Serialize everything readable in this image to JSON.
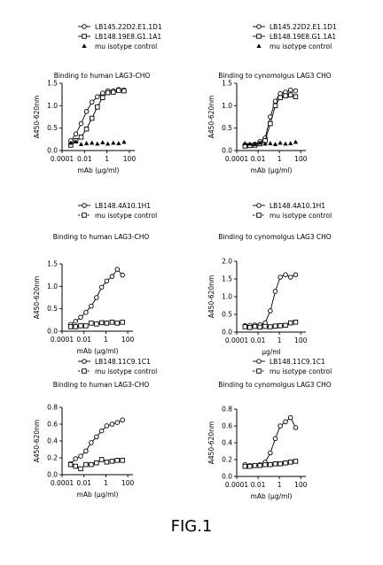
{
  "figure": {
    "caption": "FIG.1"
  },
  "chart_data": [
    {
      "type": "scatter",
      "title": "Binding to human LAG3-CHO",
      "xlabel": "mAb (μg/ml)",
      "ylabel": "A450-620nm",
      "xscale": "log",
      "xticks": [
        "0.0001",
        "0.01",
        "1",
        "100"
      ],
      "xtick_values": [
        0.0001,
        0.01,
        1,
        100
      ],
      "xlim": [
        0.0001,
        300
      ],
      "yticks": [
        "0.0",
        "0.5",
        "1.0",
        "1.5"
      ],
      "ytick_values": [
        0,
        0.5,
        1.0,
        1.5
      ],
      "ylim": [
        0,
        1.5
      ],
      "legend_position": "top",
      "series": [
        {
          "name": "LB145.22D2.E1.1D1",
          "marker": "circle",
          "curve": true,
          "x": [
            0.0006,
            0.0017,
            0.005,
            0.015,
            0.046,
            0.14,
            0.41,
            1.2,
            3.7,
            11,
            33
          ],
          "y": [
            0.22,
            0.37,
            0.6,
            0.87,
            1.08,
            1.2,
            1.28,
            1.33,
            1.33,
            1.36,
            1.35
          ]
        },
        {
          "name": "LB148.19E8.G1.1A1",
          "marker": "square",
          "curve": true,
          "x": [
            0.0006,
            0.0017,
            0.005,
            0.015,
            0.046,
            0.14,
            0.41,
            1.2,
            3.7,
            11,
            33
          ],
          "y": [
            0.12,
            0.22,
            0.3,
            0.48,
            0.72,
            0.97,
            1.18,
            1.29,
            1.3,
            1.34,
            1.33
          ]
        },
        {
          "name": "mu isotype control",
          "marker": "triangle",
          "curve": false,
          "x": [
            0.0006,
            0.0017,
            0.005,
            0.015,
            0.046,
            0.14,
            0.41,
            1.2,
            3.7,
            11,
            33
          ],
          "y": [
            0.17,
            0.2,
            0.14,
            0.16,
            0.17,
            0.15,
            0.18,
            0.15,
            0.17,
            0.16,
            0.19
          ]
        }
      ]
    },
    {
      "type": "scatter",
      "title": "Binding to cynomolgus LAG3 CHO",
      "xlabel": "mAb (μg/ml)",
      "ylabel": "A450-620nm",
      "xscale": "log",
      "xticks": [
        "0.0001",
        "0.01",
        "1",
        "100"
      ],
      "xtick_values": [
        0.0001,
        0.01,
        1,
        100
      ],
      "xlim": [
        0.0001,
        300
      ],
      "yticks": [
        "0.0",
        "0.5",
        "1.0",
        "1.5"
      ],
      "ytick_values": [
        0,
        0.5,
        1.0,
        1.5
      ],
      "ylim": [
        0,
        1.5
      ],
      "legend_position": "top",
      "series": [
        {
          "name": "LB145.22D2.E1.1D1",
          "marker": "circle",
          "curve": true,
          "x": [
            0.0006,
            0.0017,
            0.005,
            0.015,
            0.046,
            0.14,
            0.41,
            1.2,
            3.7,
            11,
            33
          ],
          "y": [
            0.13,
            0.12,
            0.14,
            0.2,
            0.28,
            0.75,
            1.1,
            1.27,
            1.3,
            1.35,
            1.33
          ]
        },
        {
          "name": "LB148.19E8.G1.1A1",
          "marker": "square",
          "curve": true,
          "x": [
            0.0006,
            0.0017,
            0.005,
            0.015,
            0.046,
            0.14,
            0.41,
            1.2,
            3.7,
            11,
            33
          ],
          "y": [
            0.1,
            0.11,
            0.12,
            0.15,
            0.22,
            0.6,
            1.0,
            1.18,
            1.22,
            1.24,
            1.2
          ]
        },
        {
          "name": "mu isotype control",
          "marker": "triangle",
          "curve": false,
          "x": [
            0.0006,
            0.0017,
            0.005,
            0.015,
            0.046,
            0.14,
            0.41,
            1.2,
            3.7,
            11,
            33
          ],
          "y": [
            0.16,
            0.15,
            0.14,
            0.17,
            0.15,
            0.16,
            0.14,
            0.17,
            0.15,
            0.16,
            0.19
          ]
        }
      ]
    },
    {
      "type": "scatter",
      "title": "Binding to human LAG3-CHO",
      "xlabel": "mAb (μg/ml)",
      "ylabel": "A450-620nm",
      "xscale": "log",
      "xticks": [
        "0.0001",
        "0.01",
        "1",
        "100"
      ],
      "xtick_values": [
        0.0001,
        0.01,
        1,
        100
      ],
      "xlim": [
        0.0001,
        300
      ],
      "yticks": [
        "0.0",
        "0.5",
        "1.0",
        "1.5"
      ],
      "ytick_values": [
        0,
        0.5,
        1.0,
        1.5
      ],
      "ylim": [
        0,
        1.5
      ],
      "legend_position": "top",
      "series": [
        {
          "name": "LB148.4A10.1H1",
          "marker": "circle",
          "curve": true,
          "x": [
            0.0006,
            0.0017,
            0.005,
            0.015,
            0.046,
            0.14,
            0.41,
            1.2,
            3.7,
            11,
            33
          ],
          "y": [
            0.15,
            0.22,
            0.31,
            0.42,
            0.56,
            0.75,
            0.98,
            1.12,
            1.22,
            1.38,
            1.25
          ]
        },
        {
          "name": "mu isotype control",
          "marker": "square",
          "curve": false,
          "x": [
            0.0006,
            0.0017,
            0.005,
            0.015,
            0.046,
            0.14,
            0.41,
            1.2,
            3.7,
            11,
            33
          ],
          "y": [
            0.1,
            0.1,
            0.12,
            0.12,
            0.18,
            0.16,
            0.19,
            0.18,
            0.2,
            0.18,
            0.2
          ]
        }
      ]
    },
    {
      "type": "scatter",
      "title": "Binding to cynomolgus LAG3 CHO",
      "xlabel": "μg/ml",
      "ylabel": "A450-620nm",
      "xscale": "log",
      "xticks": [
        "0.0001",
        "0.01",
        "1",
        "100"
      ],
      "xtick_values": [
        0.0001,
        0.01,
        1,
        100
      ],
      "xlim": [
        0.0001,
        300
      ],
      "yticks": [
        "0.0",
        "0.5",
        "1.0",
        "1.5",
        "2.0"
      ],
      "ytick_values": [
        0,
        0.5,
        1.0,
        1.5,
        2.0
      ],
      "ylim": [
        0,
        2.0
      ],
      "legend_position": "top",
      "series": [
        {
          "name": "LB148.4A10.1H1",
          "marker": "circle",
          "curve": true,
          "x": [
            0.0006,
            0.0017,
            0.005,
            0.015,
            0.046,
            0.14,
            0.41,
            1.2,
            3.7,
            11,
            33
          ],
          "y": [
            0.18,
            0.19,
            0.2,
            0.21,
            0.26,
            0.6,
            1.15,
            1.55,
            1.62,
            1.55,
            1.62
          ]
        },
        {
          "name": "mu isotype control",
          "marker": "square",
          "curve": false,
          "x": [
            0.0006,
            0.0017,
            0.005,
            0.015,
            0.046,
            0.14,
            0.41,
            1.2,
            3.7,
            11,
            33
          ],
          "y": [
            0.15,
            0.13,
            0.16,
            0.14,
            0.16,
            0.15,
            0.17,
            0.18,
            0.19,
            0.26,
            0.28
          ]
        }
      ]
    },
    {
      "type": "scatter",
      "title": "Binding to human LAG3-CHO",
      "xlabel": "mAb (μg/ml)",
      "ylabel": "A450-620nm",
      "xscale": "log",
      "xticks": [
        "0.0001",
        "0.01",
        "1",
        "100"
      ],
      "xtick_values": [
        0.0001,
        0.01,
        1,
        100
      ],
      "xlim": [
        0.0001,
        300
      ],
      "yticks": [
        "0.0",
        "0.2",
        "0.4",
        "0.6",
        "0.8"
      ],
      "ytick_values": [
        0,
        0.2,
        0.4,
        0.6,
        0.8
      ],
      "ylim": [
        0,
        0.8
      ],
      "legend_position": "top",
      "series": [
        {
          "name": "LB148.11C9.1C1",
          "marker": "circle",
          "curve": true,
          "x": [
            0.0006,
            0.0017,
            0.005,
            0.015,
            0.046,
            0.14,
            0.41,
            1.2,
            3.7,
            11,
            33
          ],
          "y": [
            0.13,
            0.19,
            0.22,
            0.28,
            0.38,
            0.45,
            0.52,
            0.58,
            0.6,
            0.62,
            0.65
          ]
        },
        {
          "name": "mu isotype control",
          "marker": "square",
          "curve": false,
          "x": [
            0.0006,
            0.0017,
            0.005,
            0.015,
            0.046,
            0.14,
            0.41,
            1.2,
            3.7,
            11,
            33
          ],
          "y": [
            0.12,
            0.1,
            0.07,
            0.12,
            0.12,
            0.14,
            0.18,
            0.15,
            0.16,
            0.17,
            0.17
          ]
        }
      ]
    },
    {
      "type": "scatter",
      "title": "Binding to cynomolgus LAG3 CHO",
      "xlabel": "mAb (μg/ml)",
      "ylabel": "A450-620nm",
      "xscale": "log",
      "xticks": [
        "0.0001",
        "0.01",
        "1",
        "100"
      ],
      "xtick_values": [
        0.0001,
        0.01,
        1,
        100
      ],
      "xlim": [
        0.0001,
        300
      ],
      "yticks": [
        "0.0",
        "0.2",
        "0.4",
        "0.6",
        "0.8"
      ],
      "ytick_values": [
        0,
        0.2,
        0.4,
        0.6,
        0.8
      ],
      "ylim": [
        0,
        0.8
      ],
      "legend_position": "top",
      "series": [
        {
          "name": "LB148.11C9.1C1",
          "marker": "circle",
          "curve": true,
          "x": [
            0.0006,
            0.0017,
            0.005,
            0.015,
            0.046,
            0.14,
            0.41,
            1.2,
            3.7,
            11,
            33
          ],
          "y": [
            0.14,
            0.13,
            0.13,
            0.14,
            0.17,
            0.28,
            0.45,
            0.6,
            0.65,
            0.7,
            0.58
          ]
        },
        {
          "name": "mu isotype control",
          "marker": "square",
          "curve": false,
          "x": [
            0.0006,
            0.0017,
            0.005,
            0.015,
            0.046,
            0.14,
            0.41,
            1.2,
            3.7,
            11,
            33
          ],
          "y": [
            0.12,
            0.12,
            0.13,
            0.13,
            0.14,
            0.14,
            0.15,
            0.15,
            0.16,
            0.17,
            0.18
          ]
        }
      ]
    }
  ]
}
